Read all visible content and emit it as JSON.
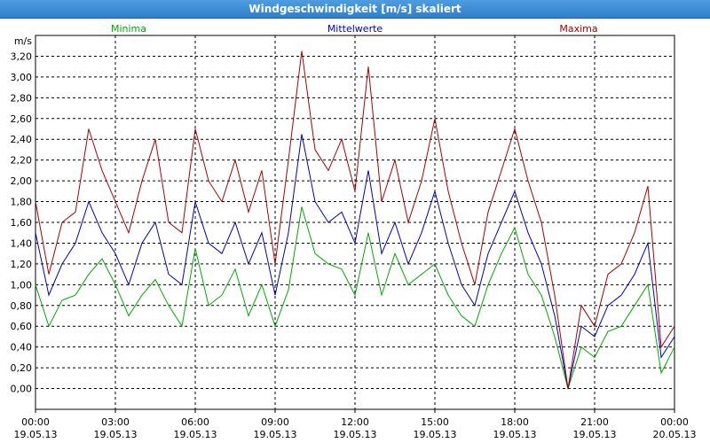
{
  "window": {
    "title": "Windgeschwindigkeit [m/s] skaliert"
  },
  "chart_data": {
    "type": "line",
    "title": "Windgeschwindigkeit [m/s] skaliert",
    "ylabel": "m/s",
    "xlabel": "",
    "ylim": [
      -0.2,
      3.4
    ],
    "xlim": [
      0,
      24
    ],
    "grid": true,
    "legend_position": "top",
    "y_ticks": [
      "3,20",
      "3,00",
      "2,80",
      "2,60",
      "2,40",
      "2,20",
      "2,00",
      "1,80",
      "1,60",
      "1,40",
      "1,20",
      "1,00",
      "0,80",
      "0,60",
      "0,40",
      "0,20",
      "0,00"
    ],
    "x_ticks": [
      {
        "time": "00:00",
        "date": "19.05.13"
      },
      {
        "time": "03:00",
        "date": "19.05.13"
      },
      {
        "time": "06:00",
        "date": "19.05.13"
      },
      {
        "time": "09:00",
        "date": "19.05.13"
      },
      {
        "time": "12:00",
        "date": "19.05.13"
      },
      {
        "time": "15:00",
        "date": "19.05.13"
      },
      {
        "time": "18:00",
        "date": "19.05.13"
      },
      {
        "time": "21:00",
        "date": "19.05.13"
      },
      {
        "time": "00:00",
        "date": "20.05.13"
      }
    ],
    "x_hours": [
      0,
      0.5,
      1,
      1.5,
      2,
      2.5,
      3,
      3.5,
      4,
      4.5,
      5,
      5.5,
      6,
      6.5,
      7,
      7.5,
      8,
      8.5,
      9,
      9.5,
      10,
      10.5,
      11,
      11.5,
      12,
      12.5,
      13,
      13.5,
      14,
      14.5,
      15,
      15.5,
      16,
      16.5,
      17,
      17.5,
      18,
      18.5,
      19,
      19.5,
      20,
      20.5,
      21,
      21.5,
      22,
      22.5,
      23,
      23.5,
      24
    ],
    "series": [
      {
        "name": "Minima",
        "color": "#00aa00",
        "values": [
          1.0,
          0.6,
          0.85,
          0.9,
          1.1,
          1.25,
          1.0,
          0.7,
          0.9,
          1.05,
          0.8,
          0.6,
          1.35,
          0.8,
          0.9,
          1.15,
          0.7,
          1.0,
          0.6,
          0.95,
          1.75,
          1.3,
          1.2,
          1.15,
          0.9,
          1.5,
          0.9,
          1.3,
          1.0,
          1.1,
          1.2,
          0.9,
          0.7,
          0.6,
          1.0,
          1.3,
          1.55,
          1.1,
          0.9,
          0.5,
          0.0,
          0.4,
          0.3,
          0.55,
          0.6,
          0.8,
          1.0,
          0.15,
          0.4
        ]
      },
      {
        "name": "Mittelwerte",
        "color": "#0000bb",
        "values": [
          1.5,
          0.9,
          1.2,
          1.4,
          1.8,
          1.5,
          1.3,
          1.0,
          1.4,
          1.6,
          1.1,
          1.0,
          1.8,
          1.4,
          1.3,
          1.6,
          1.2,
          1.5,
          0.9,
          1.5,
          2.45,
          1.8,
          1.6,
          1.7,
          1.4,
          2.1,
          1.3,
          1.6,
          1.2,
          1.5,
          1.9,
          1.4,
          1.0,
          0.8,
          1.3,
          1.6,
          1.9,
          1.5,
          1.2,
          0.7,
          0.0,
          0.6,
          0.5,
          0.8,
          0.9,
          1.1,
          1.4,
          0.3,
          0.5
        ]
      },
      {
        "name": "Maxima",
        "color": "#aa0000",
        "values": [
          1.8,
          1.1,
          1.6,
          1.7,
          2.5,
          2.1,
          1.8,
          1.5,
          2.0,
          2.4,
          1.6,
          1.5,
          2.5,
          2.0,
          1.8,
          2.2,
          1.7,
          2.1,
          1.2,
          2.2,
          3.25,
          2.3,
          2.1,
          2.4,
          1.9,
          3.1,
          1.8,
          2.2,
          1.6,
          2.0,
          2.6,
          1.9,
          1.4,
          1.0,
          1.7,
          2.1,
          2.5,
          2.0,
          1.6,
          0.9,
          0.0,
          0.8,
          0.6,
          1.1,
          1.2,
          1.5,
          1.95,
          0.4,
          0.6
        ]
      }
    ]
  }
}
